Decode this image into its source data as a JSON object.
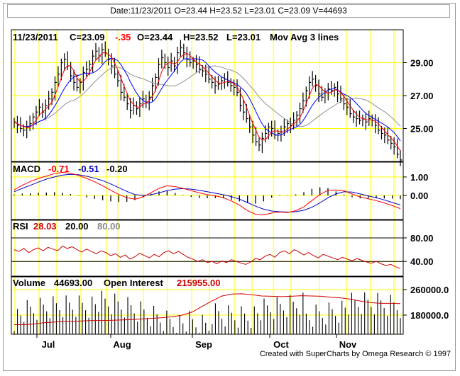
{
  "header": {
    "info": "Date:11/23/2011  O=23.44  H=23.52  L=23.01  C=23.09  V=44693"
  },
  "footer": "Created with SuperCharts by Omega Research © 1997",
  "colors": {
    "grid": "#ffff00",
    "price_bar": "#000000",
    "ma_fast": "#ff0000",
    "ma_mid": "#0000ff",
    "ma_slow": "#909090",
    "macd": "#ff0000",
    "signal": "#0000cc",
    "rsi": "#cc0000",
    "volume_bar": "#000000",
    "open_interest": "#cc0000",
    "plot_border": "#000000"
  },
  "chart_data": [
    {
      "type": "line",
      "panel": "price",
      "legend": {
        "date": "11/23/2011",
        "close": "C=23.09",
        "change": "-.35",
        "open": "O=23.44",
        "high": "H=23.52",
        "low": "L=23.01",
        "study": "Mov Avg 3 lines"
      },
      "x_tick_labels": [
        "Jul",
        "Aug",
        "Sep",
        "Oct",
        "Nov"
      ],
      "y_tick_labels": [
        "29.00",
        "27.00",
        "25.00"
      ],
      "y_ticks": [
        29,
        27,
        25
      ],
      "ylim": [
        23.0,
        31.0
      ],
      "grid": true,
      "closes": [
        25.4,
        25.2,
        25.0,
        24.9,
        25.1,
        25.3,
        25.7,
        26.0,
        26.3,
        26.0,
        26.4,
        26.8,
        27.2,
        27.8,
        28.3,
        29.0,
        29.2,
        28.8,
        28.2,
        27.8,
        27.5,
        27.8,
        28.4,
        28.6,
        28.9,
        29.4,
        29.7,
        29.4,
        29.8,
        29.6,
        29.2,
        28.8,
        28.3,
        27.9,
        27.2,
        26.9,
        26.5,
        26.1,
        26.4,
        26.2,
        26.5,
        26.8,
        26.6,
        26.9,
        27.6,
        28.1,
        28.9,
        29.3,
        29.0,
        28.7,
        29.1,
        28.8,
        29.6,
        29.9,
        29.6,
        29.2,
        29.0,
        29.1,
        28.9,
        28.6,
        28.5,
        28.3,
        28.0,
        27.8,
        27.6,
        27.7,
        27.9,
        28.0,
        27.8,
        27.6,
        27.5,
        27.2,
        26.4,
        26.0,
        25.6,
        25.1,
        24.6,
        24.2,
        24.0,
        24.4,
        24.7,
        25.1,
        25.0,
        24.6,
        24.7,
        24.8,
        25.1,
        25.3,
        25.2,
        25.5,
        25.8,
        26.2,
        26.7,
        27.3,
        27.8,
        28.0,
        27.6,
        27.1,
        26.9,
        27.2,
        27.4,
        27.3,
        27.5,
        27.1,
        26.8,
        26.5,
        26.3,
        25.9,
        25.7,
        25.6,
        25.5,
        25.6,
        25.4,
        25.6,
        25.5,
        25.2,
        24.9,
        24.7,
        24.6,
        24.3,
        24.1,
        23.9,
        23.44,
        23.09
      ]
    },
    {
      "type": "line",
      "panel": "macd",
      "legend": {
        "label": "MACD",
        "macd": "-0.71",
        "signal": "-0.51",
        "histogram": "-0.20"
      },
      "y_tick_labels": [
        "1.00",
        "0.00"
      ],
      "y_ticks": [
        1.0,
        0.0
      ],
      "ylim": [
        -1.3,
        1.8
      ],
      "grid": true,
      "series": [
        {
          "values": [
            0.3,
            0.55,
            0.75,
            0.92,
            1.05,
            1.18,
            1.25,
            1.2,
            1.08,
            0.92,
            0.74,
            0.52,
            0.28,
            0.05,
            -0.12,
            -0.2,
            -0.08,
            0.15,
            0.38,
            0.52,
            0.48,
            0.38,
            0.26,
            0.14,
            0.05,
            -0.02,
            -0.12,
            -0.3,
            -0.52,
            -0.82,
            -1.02,
            -1.05,
            -0.95,
            -0.9,
            -0.92,
            -0.82,
            -0.62,
            -0.28,
            0.05,
            0.28,
            0.3,
            0.25,
            0.08,
            -0.08,
            -0.18,
            -0.28,
            -0.4,
            -0.55,
            -0.71
          ]
        },
        {
          "values": [
            0.2,
            0.38,
            0.55,
            0.72,
            0.88,
            1.0,
            1.1,
            1.14,
            1.12,
            1.04,
            0.93,
            0.8,
            0.62,
            0.42,
            0.22,
            0.05,
            0.0,
            0.04,
            0.14,
            0.26,
            0.34,
            0.37,
            0.34,
            0.28,
            0.2,
            0.12,
            0.04,
            -0.06,
            -0.2,
            -0.38,
            -0.58,
            -0.74,
            -0.84,
            -0.88,
            -0.9,
            -0.88,
            -0.8,
            -0.64,
            -0.4,
            -0.12,
            0.08,
            0.2,
            0.18,
            0.08,
            -0.02,
            -0.12,
            -0.24,
            -0.38,
            -0.51
          ]
        },
        {
          "values": [
            0.05,
            0.1,
            0.12,
            0.15,
            0.16,
            0.18,
            0.15,
            0.08,
            -0.02,
            -0.1,
            -0.18,
            -0.26,
            -0.32,
            -0.35,
            -0.34,
            -0.25,
            -0.08,
            0.1,
            0.22,
            0.24,
            0.14,
            0.02,
            -0.08,
            -0.14,
            -0.15,
            -0.14,
            -0.16,
            -0.24,
            -0.32,
            -0.42,
            -0.44,
            -0.32,
            -0.12,
            -0.02,
            -0.02,
            0.06,
            0.18,
            0.36,
            0.44,
            0.4,
            0.22,
            0.05,
            -0.1,
            -0.16,
            -0.16,
            -0.16,
            -0.16,
            -0.17,
            -0.2
          ]
        }
      ]
    },
    {
      "type": "line",
      "panel": "rsi",
      "legend": {
        "label": "RSI",
        "value": "28.03",
        "oversold": "20.00",
        "overbought": "80.00"
      },
      "y_tick_labels": [
        "80.00",
        "40.00"
      ],
      "y_ticks": [
        80,
        40
      ],
      "ylim": [
        15,
        110
      ],
      "grid": true,
      "series": [
        {
          "values": [
            60,
            57,
            62,
            55,
            60,
            63,
            58,
            64,
            61,
            58,
            66,
            62,
            65,
            60,
            56,
            61,
            57,
            53,
            58,
            55,
            50,
            53,
            47,
            51,
            44,
            48,
            54,
            50,
            46,
            52,
            48,
            55,
            58,
            53,
            57,
            52,
            47,
            44,
            40,
            43,
            38,
            40,
            36,
            41,
            38,
            43,
            40,
            37,
            35,
            39,
            45,
            43,
            49,
            52,
            47,
            55,
            58,
            53,
            60,
            56,
            51,
            55,
            50,
            46,
            52,
            49,
            46,
            43,
            47,
            44,
            41,
            45,
            42,
            39,
            37,
            40,
            36,
            33,
            35,
            31,
            28
          ]
        }
      ]
    },
    {
      "type": "bar",
      "panel": "volume",
      "legend": {
        "label": "Volume",
        "volume": "44693.00",
        "open_interest_label": "Open Interest",
        "open_interest": "215955.00"
      },
      "y_tick_labels": [
        "260000.0",
        "180000.0"
      ],
      "y_ticks": [
        260000,
        180000
      ],
      "ylim": [
        120000,
        300000
      ],
      "grid": true,
      "series": [
        {
          "values": [
            150000,
            150000,
            152000,
            156000,
            158000,
            160000,
            160000,
            162000,
            163000,
            163000,
            164000,
            165000,
            166000,
            168000,
            170000,
            172000,
            175000,
            180000,
            190000,
            208000,
            225000,
            240000,
            246000,
            247000,
            244000,
            240000,
            239000,
            238000,
            239000,
            241000,
            240000,
            239000,
            236000,
            234000,
            230000,
            224000,
            219000,
            217000,
            217000,
            215955
          ]
        }
      ]
    }
  ]
}
